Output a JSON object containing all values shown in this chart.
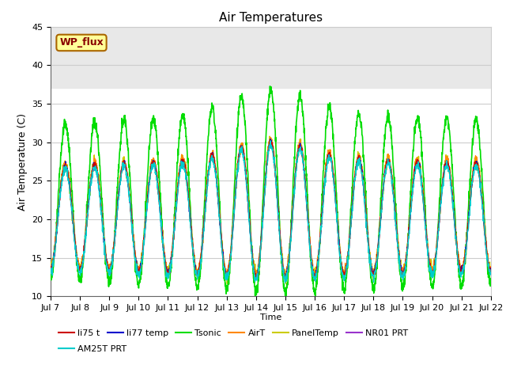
{
  "title": "Air Temperatures",
  "ylabel": "Air Temperature (C)",
  "xlabel": "Time",
  "ylim": [
    10,
    45
  ],
  "xlim": [
    0,
    15
  ],
  "shaded_ymin": 37,
  "shaded_ymax": 45,
  "shaded_color": "#e8e8e8",
  "annotation_text": "WP_flux",
  "annotation_bg": "#ffff99",
  "annotation_border": "#aa6600",
  "annotation_text_color": "#880000",
  "series": {
    "li75_t": {
      "color": "#cc0000",
      "lw": 1.0,
      "zorder": 5
    },
    "li77_temp": {
      "color": "#0000cc",
      "lw": 1.0,
      "zorder": 5
    },
    "Tsonic": {
      "color": "#00dd00",
      "lw": 1.2,
      "zorder": 4
    },
    "AirT": {
      "color": "#ff8800",
      "lw": 1.0,
      "zorder": 5
    },
    "PanelTemp": {
      "color": "#cccc00",
      "lw": 1.0,
      "zorder": 3
    },
    "NR01_PRT": {
      "color": "#9933cc",
      "lw": 1.0,
      "zorder": 5
    },
    "AM25T_PRT": {
      "color": "#00cccc",
      "lw": 1.0,
      "zorder": 6
    }
  },
  "tick_labels": [
    "Jul 7",
    "Jul 8",
    "Jul 9",
    "Jul 10",
    "Jul 11",
    "Jul 12",
    "Jul 13",
    "Jul 14",
    "Jul 15",
    "Jul 16",
    "Jul 17",
    "Jul 18",
    "Jul 19",
    "Jul 20",
    "Jul 21",
    "Jul 22"
  ],
  "tick_positions": [
    0,
    1,
    2,
    3,
    4,
    5,
    6,
    7,
    8,
    9,
    10,
    11,
    12,
    13,
    14,
    15
  ],
  "yticks": [
    10,
    15,
    20,
    25,
    30,
    35,
    40,
    45
  ],
  "grid_color": "#cccccc",
  "legend_row1": [
    "li75_t",
    "li77_temp",
    "Tsonic",
    "AirT",
    "PanelTemp",
    "NR01_PRT"
  ],
  "legend_row2": [
    "AM25T_PRT"
  ]
}
